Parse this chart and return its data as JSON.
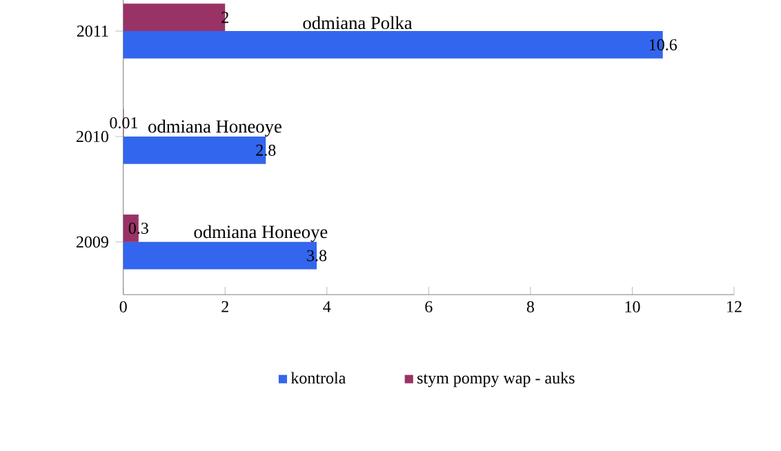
{
  "chart_data": {
    "type": "bar",
    "orientation": "horizontal",
    "categories": [
      "2011",
      "2010",
      "2009"
    ],
    "series": [
      {
        "name": "kontrola",
        "color": "#3366ee",
        "values": [
          10.6,
          2.8,
          3.8
        ]
      },
      {
        "name": "stym pompy wap - auks",
        "color": "#993366",
        "values": [
          2,
          0.01,
          0.3
        ]
      }
    ],
    "xlim": [
      0,
      12
    ],
    "xticks": [
      0,
      2,
      4,
      6,
      8,
      10,
      12
    ],
    "data_labels": true,
    "legend": "bottom",
    "annotations": [
      {
        "text": "odmiana Polka",
        "x": 4.6,
        "y": "2011"
      },
      {
        "text": "odmiana Honeoye",
        "x": 1.8,
        "y": "2010"
      },
      {
        "text": "odmiana Honeoye",
        "x": 2.7,
        "y": "2009"
      }
    ]
  }
}
